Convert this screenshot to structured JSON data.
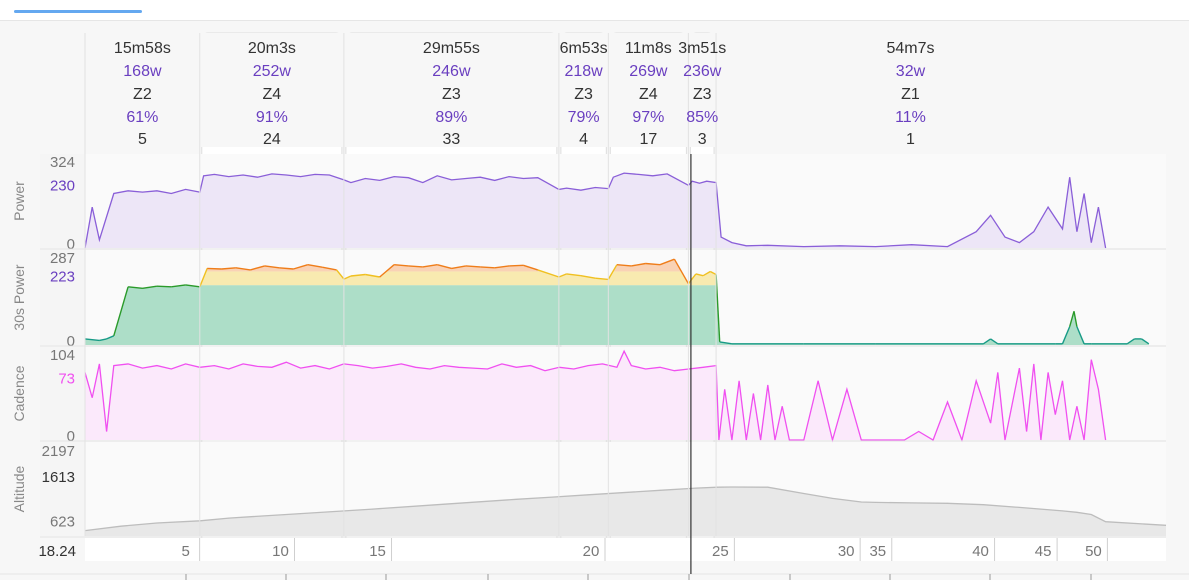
{
  "colors": {
    "power": "#8a5fd8",
    "power_fill": "#ede6f7",
    "cadence": "#f050f0",
    "cadence_fill": "#fbe9fb",
    "altitude": "#bdbdbd",
    "altitude_fill": "#e8e8e8",
    "zone_green": "#2a9a2a",
    "zone_yellow": "#f0c020",
    "zone_orange": "#ef7d1a",
    "teal": "#179a86",
    "interval_text": "#6a3fc0",
    "tab_indicator": "#64a8f0"
  },
  "chart_data": {
    "type": "line",
    "x_unit": "minutes",
    "x_range": [
      0,
      150.4
    ],
    "x_ticks": [
      5,
      10,
      15,
      20,
      25,
      30,
      35,
      40,
      45,
      50
    ],
    "x_start_label": "18.24",
    "cursor_minute": 84.3,
    "intervals": [
      {
        "duration": "15m58s",
        "power": "168w",
        "zone": "Z2",
        "pct": "61%",
        "count": "5",
        "start_min": 0.0,
        "end_min": 15.97,
        "avg": 168,
        "highlight": false
      },
      {
        "duration": "20m3s",
        "power": "252w",
        "zone": "Z4",
        "pct": "91%",
        "count": "24",
        "start_min": 15.97,
        "end_min": 36.02,
        "avg": 252,
        "highlight": true
      },
      {
        "duration": "29m55s",
        "power": "246w",
        "zone": "Z3",
        "pct": "89%",
        "count": "33",
        "start_min": 36.02,
        "end_min": 65.93,
        "avg": 246,
        "highlight": true
      },
      {
        "duration": "6m53s",
        "power": "218w",
        "zone": "Z3",
        "pct": "79%",
        "count": "4",
        "start_min": 65.93,
        "end_min": 72.81,
        "avg": 218,
        "highlight": false
      },
      {
        "duration": "11m8s",
        "power": "269w",
        "zone": "Z4",
        "pct": "97%",
        "count": "17",
        "start_min": 72.81,
        "end_min": 83.95,
        "avg": 269,
        "highlight": true
      },
      {
        "duration": "3m51s",
        "power": "236w",
        "zone": "Z3",
        "pct": "85%",
        "count": "3",
        "start_min": 83.95,
        "end_min": 87.8,
        "avg": 236,
        "highlight": false
      },
      {
        "duration": "54m7s",
        "power": "32w",
        "zone": "Z1",
        "pct": "11%",
        "count": "1",
        "start_min": 87.8,
        "end_min": 141.9,
        "avg": 32,
        "highlight": false
      }
    ],
    "panels": [
      {
        "key": "power",
        "label": "Power",
        "ticks": [
          {
            "label": "324",
            "value": 324,
            "accent": false
          },
          {
            "label": "230",
            "value": 230,
            "accent": true
          },
          {
            "label": "0",
            "value": 0,
            "accent": false
          }
        ],
        "ylim": [
          0,
          345
        ],
        "x": [
          0,
          1,
          2,
          4,
          6,
          8,
          10,
          12,
          14,
          15.97,
          16.5,
          18,
          20,
          22,
          24,
          26,
          28,
          30,
          32,
          34,
          36.02,
          37,
          39,
          41,
          43,
          45,
          47,
          49,
          51,
          53,
          55,
          57,
          59,
          61,
          63,
          65.93,
          67,
          69,
          71,
          72.81,
          73.5,
          75,
          77,
          79,
          81,
          83.95,
          84.5,
          85.5,
          86.5,
          87.8,
          88.5,
          90,
          92,
          95,
          100,
          105,
          110,
          115,
          120,
          124,
          126,
          128,
          130,
          132,
          134,
          136,
          137,
          138,
          139,
          140,
          141,
          142
        ],
        "values": [
          0,
          150,
          30,
          200,
          210,
          205,
          210,
          200,
          215,
          205,
          265,
          270,
          262,
          268,
          260,
          272,
          268,
          262,
          270,
          268,
          250,
          240,
          255,
          248,
          262,
          258,
          240,
          265,
          250,
          255,
          260,
          248,
          262,
          255,
          258,
          215,
          220,
          212,
          222,
          218,
          260,
          275,
          270,
          265,
          272,
          230,
          245,
          238,
          245,
          240,
          40,
          20,
          8,
          10,
          5,
          8,
          5,
          12,
          5,
          60,
          120,
          40,
          20,
          60,
          150,
          70,
          260,
          60,
          200,
          20,
          150,
          0
        ]
      },
      {
        "key": "power30",
        "label": "30s Power",
        "ticks": [
          {
            "label": "287",
            "value": 287,
            "accent": false
          },
          {
            "label": "223",
            "value": 223,
            "accent": true
          },
          {
            "label": "0",
            "value": 0,
            "accent": false
          }
        ],
        "ylim": [
          0,
          310
        ],
        "zone_bands": [
          {
            "name": "Z1-Z2",
            "from": 0,
            "to": 195,
            "color": "#bfe5cc"
          },
          {
            "name": "Z3",
            "from": 195,
            "to": 240,
            "color": "#f8eab0"
          },
          {
            "name": "Z4",
            "from": 240,
            "to": 310,
            "color": "#f9d2b5"
          }
        ],
        "x": [
          0,
          2,
          3,
          4,
          6,
          8,
          10,
          12,
          14,
          15.97,
          17,
          19,
          21,
          23,
          25,
          27,
          29,
          31,
          33,
          35,
          36.02,
          37,
          39,
          41,
          43,
          45,
          47,
          49,
          51,
          53,
          55,
          57,
          59,
          61,
          63,
          65.93,
          67,
          69,
          71,
          72.81,
          74,
          76,
          78,
          80,
          82,
          83.95,
          85,
          86,
          87,
          87.8,
          88.3,
          90,
          100,
          110,
          120,
          125,
          126,
          127,
          135,
          136,
          137,
          137.6,
          138,
          139,
          140,
          145,
          146,
          147,
          148
        ],
        "values": [
          20,
          15,
          20,
          30,
          190,
          185,
          192,
          190,
          196,
          190,
          250,
          248,
          252,
          245,
          258,
          252,
          248,
          262,
          254,
          245,
          215,
          225,
          230,
          222,
          262,
          258,
          255,
          262,
          250,
          258,
          255,
          252,
          258,
          260,
          245,
          222,
          232,
          226,
          218,
          214,
          262,
          258,
          266,
          262,
          280,
          200,
          232,
          226,
          240,
          230,
          10,
          4,
          4,
          4,
          4,
          4,
          20,
          4,
          4,
          4,
          60,
          110,
          60,
          4,
          4,
          4,
          20,
          20,
          4
        ]
      },
      {
        "key": "cadence",
        "label": "Cadence",
        "ticks": [
          {
            "label": "104",
            "value": 104,
            "accent": false
          },
          {
            "label": "73",
            "value": 73,
            "accent": true
          },
          {
            "label": "0",
            "value": 0,
            "accent": false
          }
        ],
        "ylim": [
          0,
          110
        ],
        "x": [
          0,
          1,
          2,
          3,
          4,
          6,
          8,
          10,
          12,
          14,
          15.97,
          18,
          20,
          22,
          24,
          26,
          28,
          30,
          32,
          34,
          36,
          38,
          40,
          42,
          44,
          46,
          48,
          50,
          52,
          54,
          56,
          58,
          60,
          62,
          64,
          66,
          68,
          70,
          72,
          74,
          75,
          76,
          78,
          80,
          82,
          84,
          86,
          87.8,
          88.2,
          89,
          90,
          91,
          92,
          93,
          94,
          95,
          96,
          97,
          98,
          100,
          102,
          104,
          106,
          108,
          110,
          112,
          114,
          116,
          118,
          120,
          122,
          124,
          126,
          127,
          128,
          130,
          131,
          132,
          133,
          134,
          135,
          136,
          137,
          138,
          139,
          140,
          141,
          142
        ],
        "values": [
          80,
          50,
          90,
          10,
          88,
          90,
          85,
          88,
          84,
          90,
          86,
          88,
          84,
          90,
          87,
          86,
          92,
          85,
          88,
          84,
          90,
          88,
          85,
          87,
          90,
          86,
          84,
          88,
          86,
          85,
          84,
          90,
          86,
          88,
          82,
          86,
          84,
          88,
          90,
          86,
          105,
          88,
          84,
          86,
          82,
          84,
          86,
          88,
          0,
          60,
          0,
          70,
          0,
          55,
          0,
          65,
          0,
          40,
          0,
          0,
          70,
          0,
          60,
          0,
          0,
          0,
          0,
          10,
          0,
          45,
          0,
          70,
          20,
          80,
          0,
          85,
          10,
          90,
          0,
          80,
          30,
          70,
          0,
          40,
          0,
          95,
          60,
          0
        ]
      },
      {
        "key": "altitude",
        "label": "Altitude",
        "ticks": [
          {
            "label": "2197",
            "value": 2197,
            "accent": false
          },
          {
            "label": "1613",
            "value": 1613,
            "accent": true
          },
          {
            "label": "623",
            "value": 623,
            "accent": false
          }
        ],
        "ylim": [
          300,
          2400
        ],
        "x": [
          0,
          5,
          10,
          16,
          20,
          30,
          40,
          50,
          60,
          65,
          70,
          80,
          85,
          88,
          90,
          95,
          100,
          104,
          108,
          110,
          115,
          120,
          125,
          130,
          133,
          136,
          138,
          140,
          142,
          150.4
        ],
        "values": [
          420,
          520,
          590,
          640,
          700,
          800,
          900,
          1010,
          1120,
          1170,
          1220,
          1320,
          1370,
          1390,
          1395,
          1390,
          1250,
          1140,
          1060,
          1050,
          1040,
          1030,
          1000,
          940,
          900,
          860,
          830,
          780,
          620,
          540
        ]
      }
    ]
  }
}
